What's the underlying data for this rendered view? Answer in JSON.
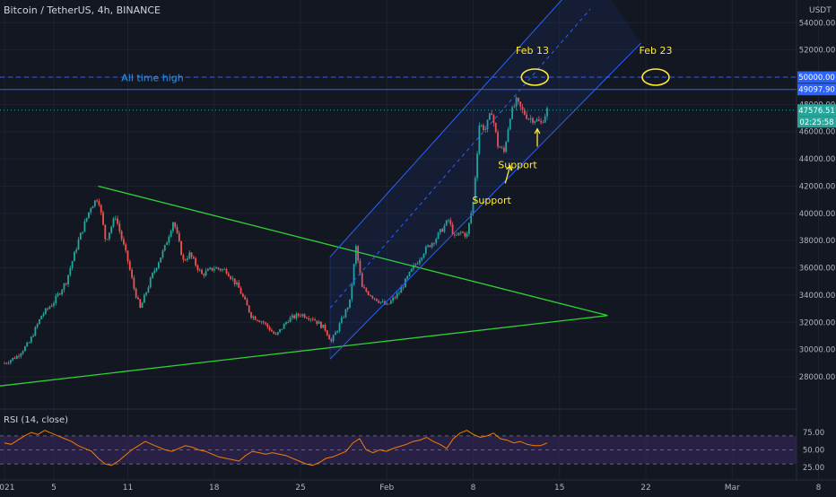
{
  "header": {
    "symbol_title": "Bitcoin / TetherUS, 4h, BINANCE"
  },
  "price_axis": {
    "currency_label": "USDT"
  },
  "chart_data": {
    "type": "candlestick",
    "title": "Bitcoin / TetherUS, 4h, BINANCE",
    "ylim": [
      25000,
      56000
    ],
    "y_ticks": [
      28000,
      30000,
      32000,
      34000,
      36000,
      38000,
      40000,
      42000,
      44000,
      46000,
      48000,
      50000,
      52000,
      54000
    ],
    "y_tick_labels": [
      "28000.00",
      "30000.00",
      "32000.00",
      "34000.00",
      "36000.00",
      "38000.00",
      "40000.00",
      "42000.00",
      "44000.00",
      "46000.00",
      "48000.00",
      "50000.00",
      "52000.00",
      "54000.00"
    ],
    "xlim_day": [
      -0.1,
      39.8
    ],
    "x_ticks": [
      {
        "label": "2021",
        "day": 0
      },
      {
        "label": "5",
        "day": 4
      },
      {
        "label": "11",
        "day": 10
      },
      {
        "label": "18",
        "day": 17
      },
      {
        "label": "25",
        "day": 24
      },
      {
        "label": "Feb",
        "day": 31
      },
      {
        "label": "8",
        "day": 38
      },
      {
        "label": "15",
        "day": 45
      },
      {
        "label": "22",
        "day": 52
      },
      {
        "label": "Mar",
        "day": 59
      },
      {
        "label": "8",
        "day": 66
      }
    ],
    "close_anchors": [
      [
        0.0,
        29000
      ],
      [
        1.0,
        29500
      ],
      [
        2.0,
        30500
      ],
      [
        3.0,
        32500
      ],
      [
        4.0,
        33500
      ],
      [
        5.0,
        35000
      ],
      [
        6.0,
        38000
      ],
      [
        7.0,
        40500
      ],
      [
        7.6,
        41200
      ],
      [
        8.2,
        38000
      ],
      [
        9.0,
        39800
      ],
      [
        10.0,
        36500
      ],
      [
        10.5,
        34500
      ],
      [
        11.0,
        33000
      ],
      [
        12.0,
        35500
      ],
      [
        13.0,
        37500
      ],
      [
        13.7,
        39500
      ],
      [
        14.5,
        36500
      ],
      [
        15.0,
        37000
      ],
      [
        16.0,
        35500
      ],
      [
        17.0,
        36000
      ],
      [
        18.0,
        35800
      ],
      [
        19.0,
        34500
      ],
      [
        20.0,
        32500
      ],
      [
        21.0,
        32000
      ],
      [
        22.0,
        31000
      ],
      [
        23.0,
        32200
      ],
      [
        24.0,
        32600
      ],
      [
        25.0,
        32300
      ],
      [
        26.0,
        31500
      ],
      [
        26.5,
        30600
      ],
      [
        27.0,
        31500
      ],
      [
        28.0,
        33500
      ],
      [
        28.5,
        37500
      ],
      [
        29.0,
        34500
      ],
      [
        30.0,
        33800
      ],
      [
        31.0,
        33200
      ],
      [
        32.0,
        34200
      ],
      [
        33.0,
        35800
      ],
      [
        34.0,
        37200
      ],
      [
        35.0,
        38200
      ],
      [
        36.0,
        39500
      ],
      [
        36.5,
        38200
      ],
      [
        37.0,
        38600
      ],
      [
        37.5,
        38400
      ],
      [
        38.0,
        40800
      ],
      [
        38.5,
        46500
      ],
      [
        39.0,
        46200
      ],
      [
        39.5,
        47500
      ],
      [
        40.0,
        45000
      ],
      [
        40.5,
        44500
      ],
      [
        41.0,
        47200
      ],
      [
        41.5,
        48200
      ],
      [
        42.0,
        47500
      ],
      [
        42.5,
        47000
      ],
      [
        43.0,
        46900
      ],
      [
        43.5,
        46600
      ],
      [
        44.0,
        47600
      ]
    ],
    "horizontal_lines": [
      {
        "name": "all-time-high-level",
        "value": 49097.9,
        "label": "49097.90",
        "style": "solid",
        "color": "#2962ff"
      },
      {
        "name": "fifty-thousand-level",
        "value": 50000,
        "label": "50000.00",
        "style": "dashed",
        "color": "#2962ff"
      },
      {
        "name": "last-price-line",
        "value": 47576.51,
        "label": "47576.51",
        "style": "dotted",
        "color": "#26a69a"
      }
    ],
    "countdown": "02:25:58",
    "triangle": {
      "color": "#2fd135",
      "upper": [
        [
          7.6,
          42000
        ],
        [
          48.9,
          32500
        ]
      ],
      "lower": [
        [
          -3.5,
          27000
        ],
        [
          48.9,
          32500
        ]
      ]
    },
    "channel": {
      "color": "#2962ff",
      "upper": [
        [
          26.4,
          36800
        ],
        [
          47.5,
          58000
        ]
      ],
      "lower": [
        [
          26.4,
          29300
        ],
        [
          51.6,
          52500
        ]
      ],
      "middle": [
        [
          26.4,
          33050
        ],
        [
          47.5,
          55000
        ]
      ]
    },
    "annotations": [
      {
        "text": "All time high",
        "day": 12.0,
        "value": 49700,
        "color": "#2196f3"
      },
      {
        "text": "Feb 13",
        "day": 42.8,
        "value": 51700,
        "color": "#ffeb3b"
      },
      {
        "text": "Feb 23",
        "day": 52.8,
        "value": 51700,
        "color": "#ffeb3b"
      },
      {
        "text": "Support",
        "day": 41.6,
        "value": 43300,
        "color": "#ffeb3b"
      },
      {
        "text": "Support",
        "day": 39.5,
        "value": 40700,
        "color": "#ffeb3b"
      }
    ],
    "marker_circles": [
      {
        "day": 43.0,
        "value": 50000,
        "color": "#ffeb3b"
      },
      {
        "day": 52.8,
        "value": 50000,
        "color": "#ffeb3b"
      }
    ],
    "arrows": [
      {
        "from": [
          43.2,
          44900
        ],
        "to": [
          43.2,
          46200
        ],
        "color": "#ffeb3b"
      },
      {
        "from": [
          40.6,
          42200
        ],
        "to": [
          41.0,
          43500
        ],
        "color": "#ffeb3b"
      }
    ],
    "colors": {
      "up": "#26a69a",
      "down": "#ef5350",
      "grid": "#1e222d"
    }
  },
  "rsi": {
    "label": "RSI (14, close)",
    "ylim": [
      20,
      85
    ],
    "levels": [
      25,
      50,
      75
    ],
    "level_labels": [
      "25.00",
      "50.00",
      "75.00"
    ],
    "overbought": 70,
    "oversold": 30,
    "line_color": "#f57c00",
    "band_color": "#3b2a63",
    "values": [
      60,
      58,
      64,
      70,
      75,
      72,
      78,
      74,
      70,
      66,
      62,
      56,
      52,
      48,
      38,
      30,
      28,
      34,
      42,
      50,
      56,
      62,
      58,
      54,
      50,
      48,
      52,
      56,
      54,
      50,
      48,
      44,
      40,
      38,
      36,
      34,
      42,
      48,
      46,
      44,
      46,
      44,
      42,
      38,
      34,
      30,
      28,
      32,
      38,
      40,
      44,
      48,
      60,
      66,
      50,
      46,
      50,
      48,
      52,
      55,
      58,
      62,
      64,
      68,
      62,
      58,
      52,
      66,
      74,
      78,
      72,
      68,
      70,
      74,
      66,
      64,
      60,
      62,
      58,
      56,
      56,
      60
    ]
  }
}
